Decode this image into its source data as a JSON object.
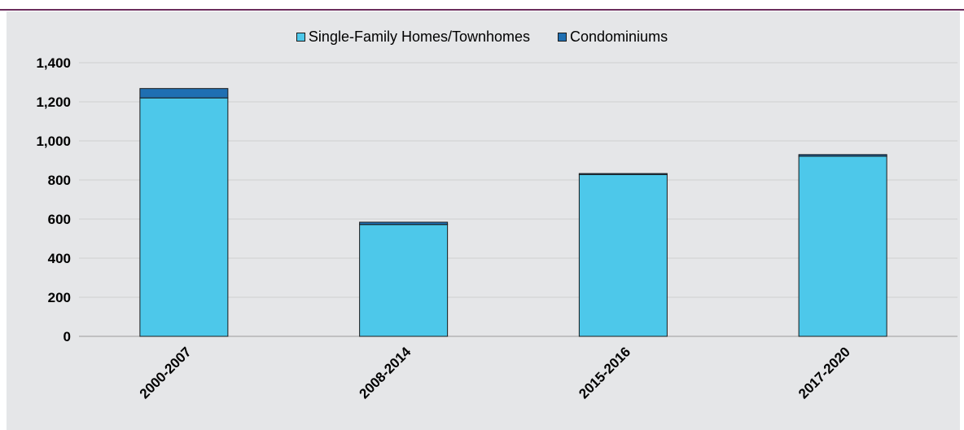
{
  "chart_data": {
    "type": "bar",
    "stacked": true,
    "title": "",
    "xlabel": "",
    "ylabel": "",
    "categories": [
      "2000-2007",
      "2008-2014",
      "2015-2016",
      "2017-2020"
    ],
    "series": [
      {
        "name": "Single-Family Homes/Townhomes",
        "color": "#4dc8ea",
        "values": [
          1220,
          572,
          828,
          922
        ]
      },
      {
        "name": "Condominiums",
        "color": "#1f6fb2",
        "values": [
          48,
          12,
          5,
          8
        ]
      }
    ],
    "ylim": [
      0,
      1400
    ],
    "yticks": [
      0,
      200,
      400,
      600,
      800,
      1000,
      1200,
      1400
    ],
    "ytick_labels": [
      "0",
      "200",
      "400",
      "600",
      "800",
      "1,000",
      "1,200",
      "1,400"
    ],
    "grid": true,
    "legend_position": "top-center"
  }
}
